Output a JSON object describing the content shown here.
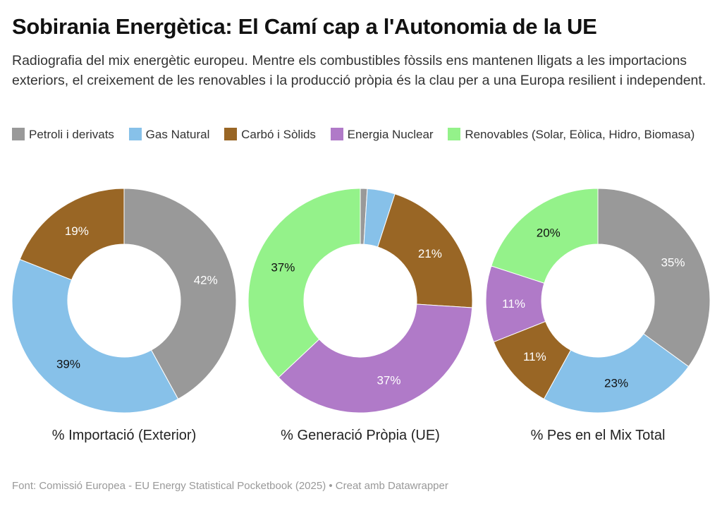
{
  "header": {
    "title": "Sobirania Energètica: El Camí cap a l'Autonomia de la UE",
    "subtitle": "Radiografia del mix energètic europeu. Mentre els combustibles fòssils ens mantenen lligats a les importacions exteriors, el creixement de les renovables i la producció pròpia és la clau per a una Europa resilient i independent."
  },
  "legend": [
    {
      "label": "Petroli i derivats",
      "color": "#999999"
    },
    {
      "label": "Gas Natural",
      "color": "#87c1e9"
    },
    {
      "label": "Carbó i Sòlids",
      "color": "#996625"
    },
    {
      "label": "Energia Nuclear",
      "color": "#b07ac8"
    },
    {
      "label": "Renovables (Solar, Eòlica, Hidro, Biomasa)",
      "color": "#94f28a"
    }
  ],
  "chart_data": [
    {
      "type": "pie",
      "subtype": "donut",
      "title": "% Importació (Exterior)",
      "categories": [
        "Petroli i derivats",
        "Gas Natural",
        "Carbó i Sòlids",
        "Energia Nuclear",
        "Renovables (Solar, Eòlica, Hidro, Biomasa)"
      ],
      "values": [
        42,
        39,
        19,
        0,
        0
      ],
      "labels": [
        "42%",
        "39%",
        "19%",
        "",
        ""
      ]
    },
    {
      "type": "pie",
      "subtype": "donut",
      "title": "% Generació Pròpia (UE)",
      "categories": [
        "Petroli i derivats",
        "Gas Natural",
        "Carbó i Sòlids",
        "Energia Nuclear",
        "Renovables (Solar, Eòlica, Hidro, Biomasa)"
      ],
      "values": [
        1,
        4,
        21,
        37,
        37
      ],
      "labels": [
        "",
        "",
        "21%",
        "37%",
        "37%"
      ]
    },
    {
      "type": "pie",
      "subtype": "donut",
      "title": "% Pes en el Mix Total",
      "categories": [
        "Petroli i derivats",
        "Gas Natural",
        "Carbó i Sòlids",
        "Energia Nuclear",
        "Renovables (Solar, Eòlica, Hidro, Biomasa)"
      ],
      "values": [
        35,
        23,
        11,
        11,
        20
      ],
      "labels": [
        "35%",
        "23%",
        "11%",
        "11%",
        "20%"
      ]
    }
  ],
  "label_colors": {
    "#999999": "#ffffff",
    "#87c1e9": "#111111",
    "#996625": "#ffffff",
    "#b07ac8": "#ffffff",
    "#94f28a": "#111111"
  },
  "footer": {
    "source": "Font: Comissió Europea - EU Energy Statistical Pocketbook (2025) • Creat amb Datawrapper"
  }
}
